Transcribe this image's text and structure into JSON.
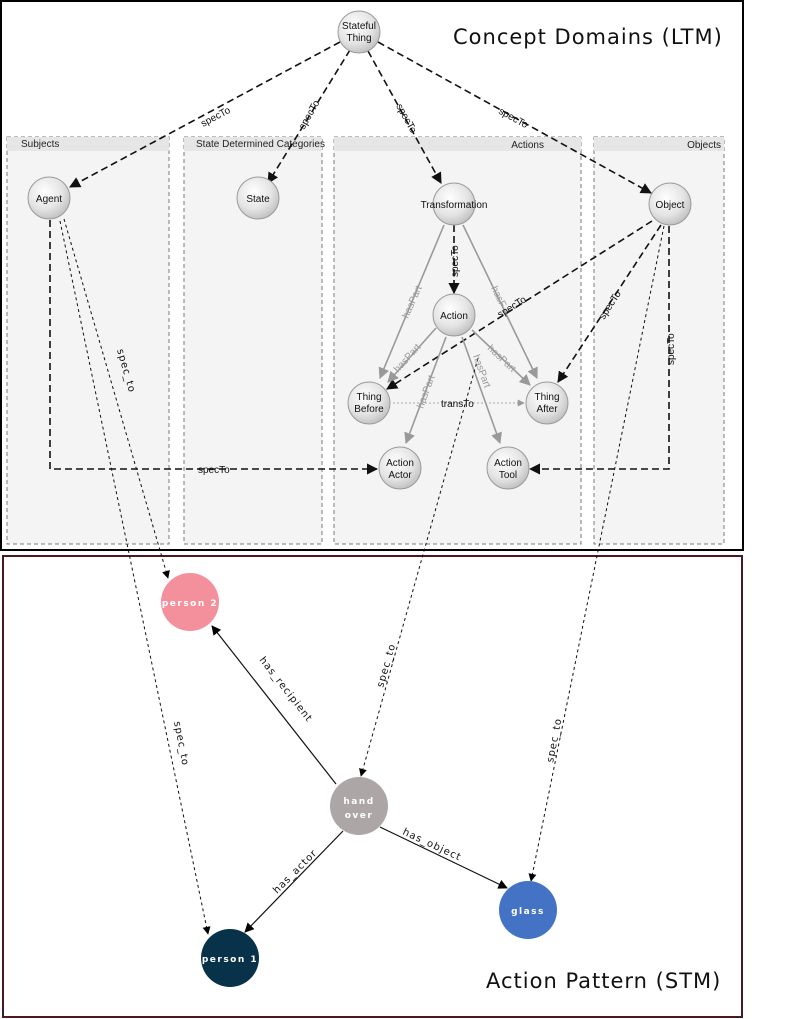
{
  "ltm": {
    "title": "Concept Domains (LTM)",
    "groups": {
      "subjects": "Subjects",
      "state_categories": "State Determined Categories",
      "actions": "Actions",
      "objects": "Objects"
    },
    "nodes": {
      "stateful_thing": [
        "Stateful",
        "Thing"
      ],
      "agent": "Agent",
      "state": "State",
      "transformation": "Transformation",
      "object": "Object",
      "action": "Action",
      "thing_before": [
        "Thing",
        "Before"
      ],
      "thing_after": [
        "Thing",
        "After"
      ],
      "action_actor": [
        "Action",
        "Actor"
      ],
      "action_tool": [
        "Action",
        "Tool"
      ]
    },
    "edges": {
      "spec_to": "specTo",
      "has_part": "hasPart",
      "has_part_cut": "hasF",
      "trans_to": "transTo"
    }
  },
  "stm": {
    "title": "Action Pattern (STM)",
    "nodes": {
      "person2": "person 2",
      "hand_over": [
        "hand",
        "over"
      ],
      "glass": "glass",
      "person1": "person 1"
    },
    "edges": {
      "spec_to": "spec_to",
      "has_recipient": "has_recipient",
      "has_actor": "has_actor",
      "has_object": "has_object"
    },
    "colors": {
      "person2": "#f4909c",
      "hand_over": "#aca6a6",
      "glass": "#4472c4",
      "person1": "#08314a"
    }
  }
}
